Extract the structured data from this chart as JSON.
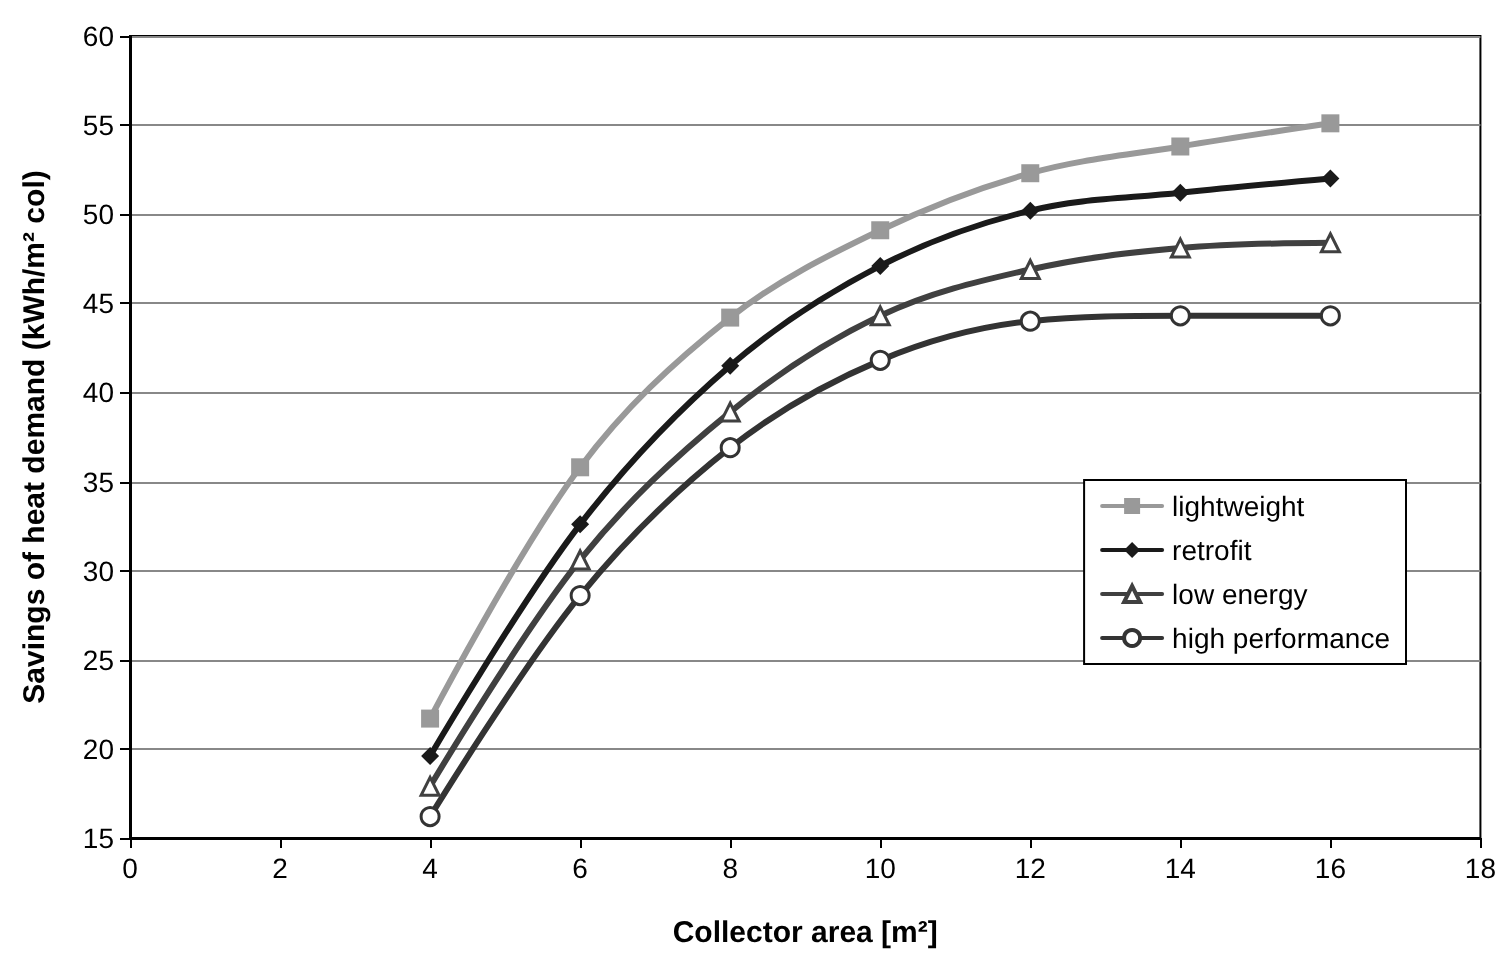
{
  "chart_data": {
    "type": "line",
    "xlabel": "Collector area [m²]",
    "ylabel": "Savings of heat demand (kWh/m² col)",
    "x": [
      4,
      6,
      8,
      10,
      12,
      14,
      16
    ],
    "series": [
      {
        "name": "lightweight",
        "color": "#999999",
        "marker": "square",
        "values": [
          21.7,
          35.8,
          44.2,
          49.1,
          52.3,
          53.8,
          55.1
        ]
      },
      {
        "name": "retrofit",
        "color": "#1a1a1a",
        "marker": "diamond",
        "values": [
          19.6,
          32.6,
          41.5,
          47.1,
          50.2,
          51.2,
          52.0
        ]
      },
      {
        "name": "low energy",
        "color": "#404040",
        "marker": "triangle",
        "values": [
          17.9,
          30.6,
          38.9,
          44.3,
          46.9,
          48.1,
          48.4
        ]
      },
      {
        "name": "high performance",
        "color": "#333333",
        "marker": "circle",
        "values": [
          16.2,
          28.6,
          36.9,
          41.8,
          44.0,
          44.3,
          44.3
        ]
      }
    ],
    "xlim": [
      0,
      18
    ],
    "xticks": [
      0,
      2,
      4,
      6,
      8,
      10,
      12,
      14,
      16,
      18
    ],
    "ylim": [
      15,
      60
    ],
    "yticks": [
      15,
      20,
      25,
      30,
      35,
      40,
      45,
      50,
      55,
      60
    ],
    "grid": "y",
    "legend": "right"
  }
}
